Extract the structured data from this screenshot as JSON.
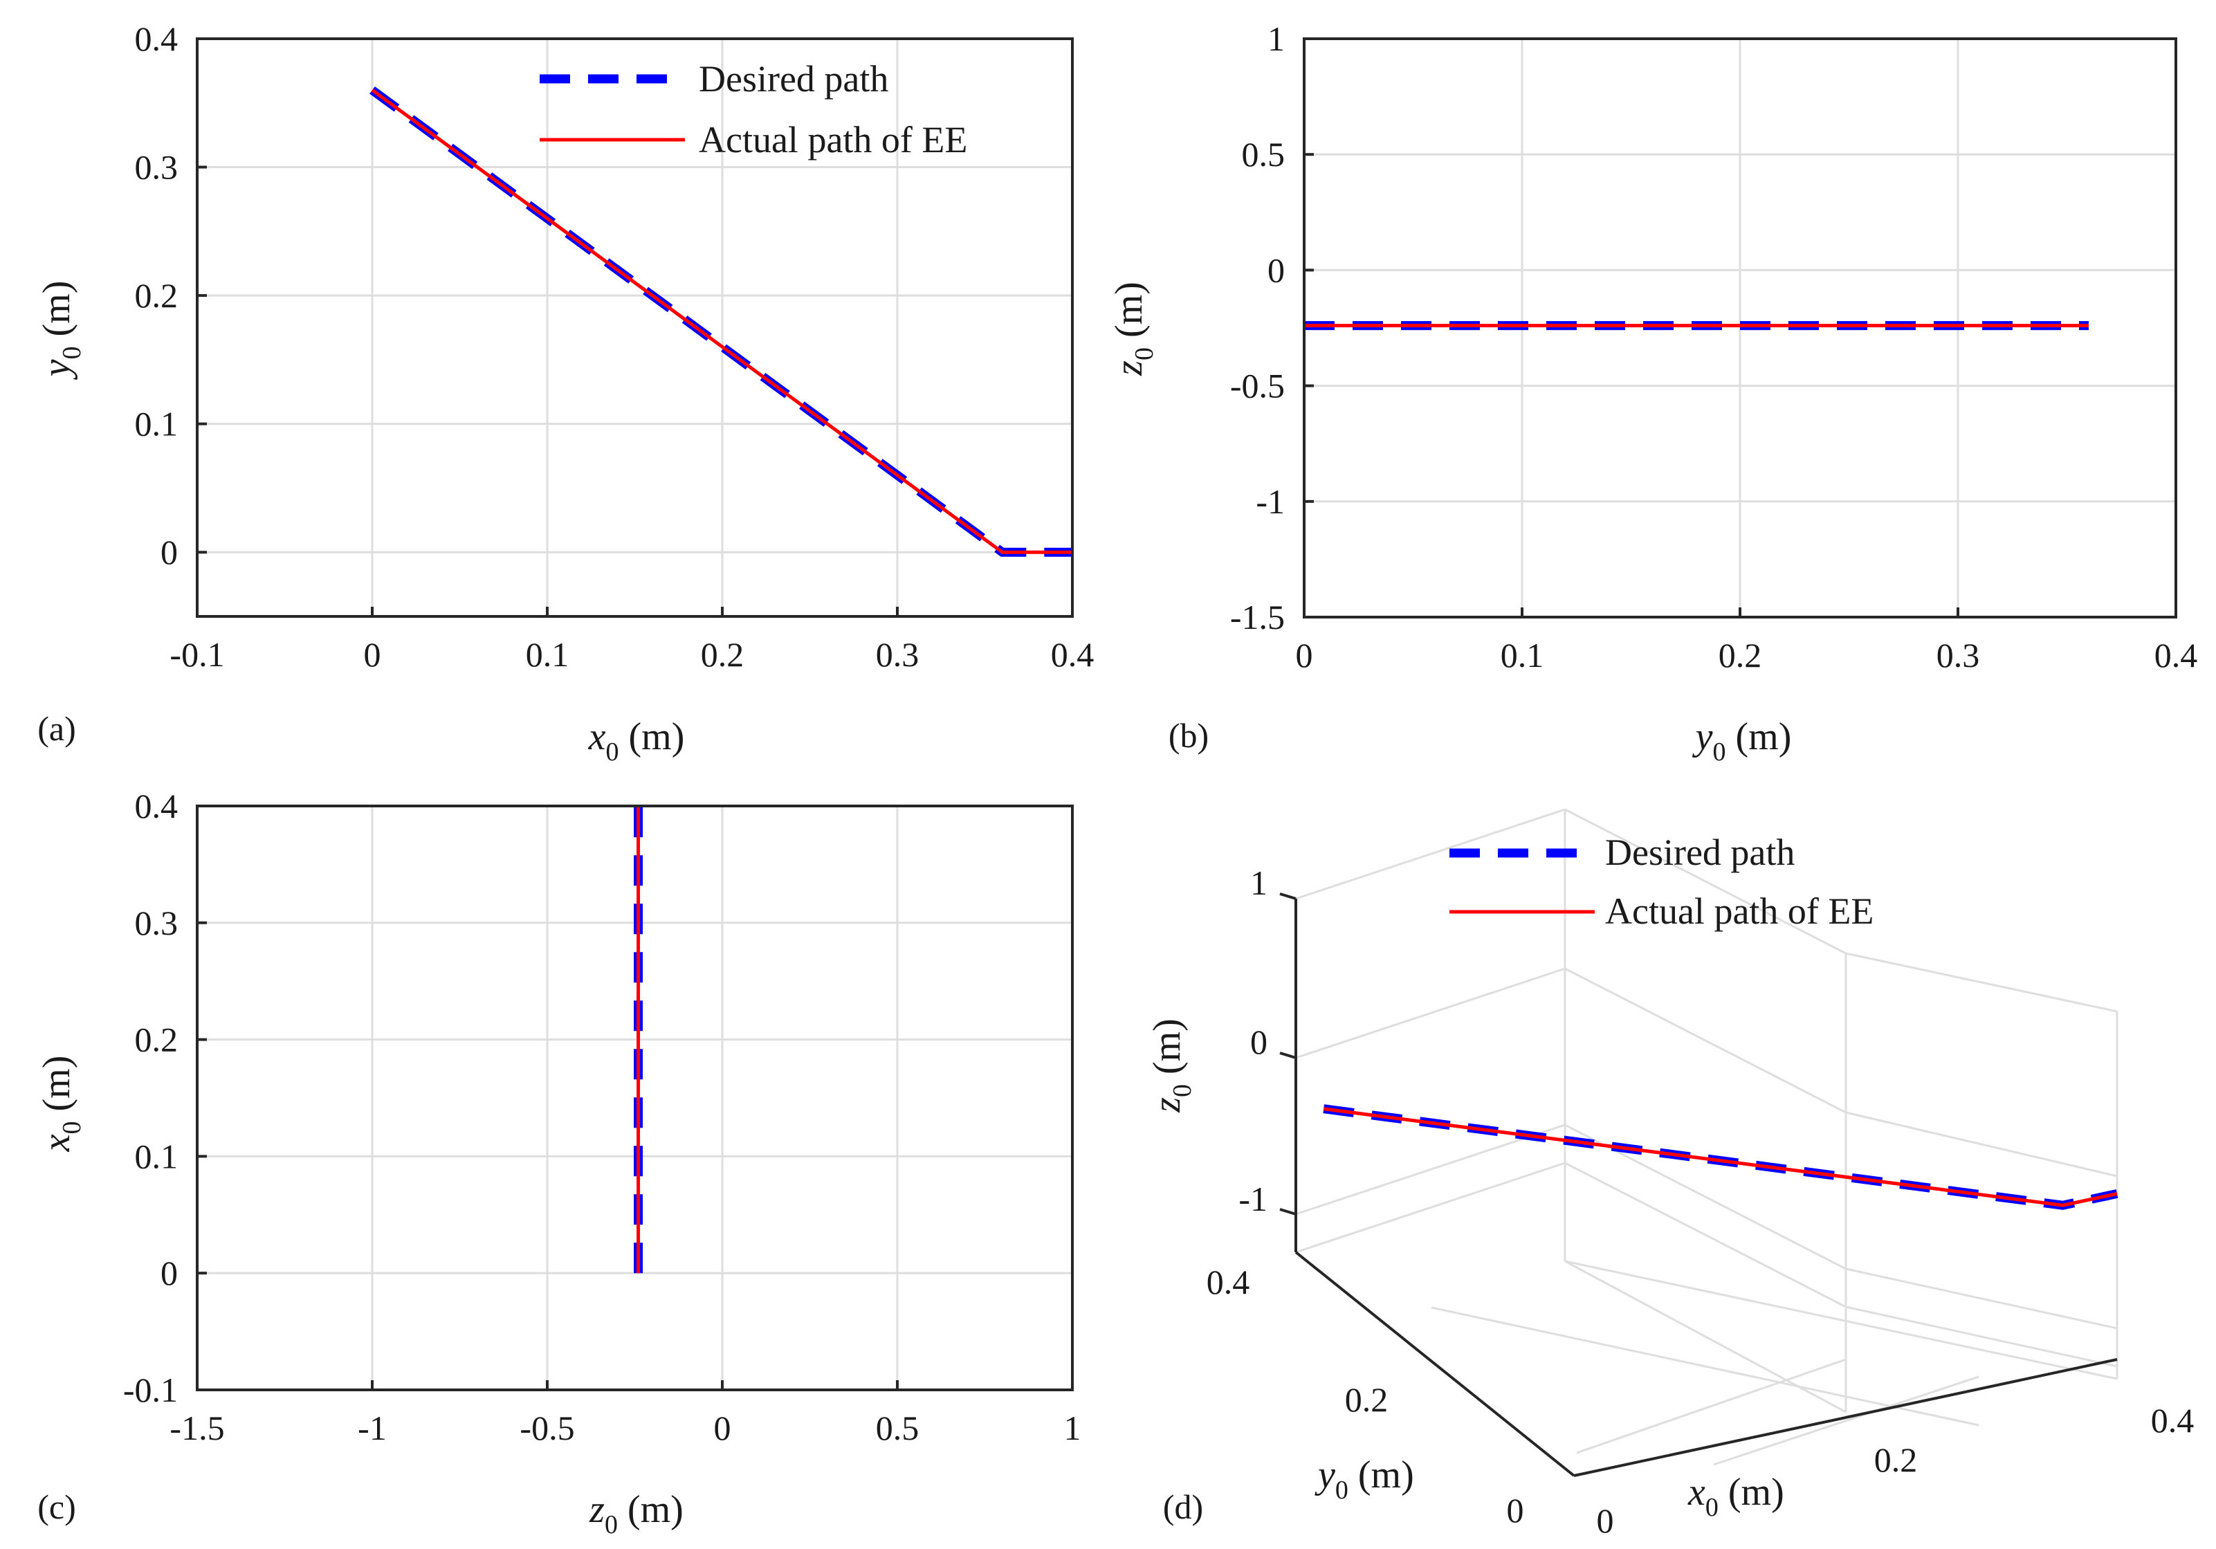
{
  "chart_data": [
    {
      "id": "a",
      "type": "line",
      "panel_label": "(a)",
      "xlabel": {
        "var": "x",
        "sub": "0",
        "unit": " (m)"
      },
      "ylabel": {
        "var": "y",
        "sub": "0",
        "unit": " (m)"
      },
      "xlim": [
        -0.1,
        0.4
      ],
      "ylim": [
        -0.05,
        0.4
      ],
      "xticks": [
        -0.1,
        0,
        0.1,
        0.2,
        0.3,
        0.4
      ],
      "xtick_labels": [
        "-0.1",
        "0",
        "0.1",
        "0.2",
        "0.3",
        "0.4"
      ],
      "yticks": [
        0,
        0.1,
        0.2,
        0.3,
        0.4
      ],
      "ytick_labels": [
        "0",
        "0.1",
        "0.2",
        "0.3",
        "0.4"
      ],
      "grid": true,
      "legend": [
        "Desired path",
        "Actual path of EE"
      ],
      "series": [
        {
          "name": "Desired path",
          "style": "dashed",
          "color": "#0000ff",
          "x": [
            0,
            0.36,
            0.4
          ],
          "y": [
            0.36,
            0,
            0
          ]
        },
        {
          "name": "Actual path of EE",
          "style": "solid",
          "color": "#ff0000",
          "x": [
            0,
            0.36,
            0.4
          ],
          "y": [
            0.36,
            0,
            0
          ]
        }
      ]
    },
    {
      "id": "b",
      "type": "line",
      "panel_label": "(b)",
      "xlabel": {
        "var": "y",
        "sub": "0",
        "unit": " (m)"
      },
      "ylabel": {
        "var": "z",
        "sub": "0",
        "unit": " (m)"
      },
      "xlim": [
        0,
        0.4
      ],
      "ylim": [
        -1.5,
        1
      ],
      "xticks": [
        0,
        0.1,
        0.2,
        0.3,
        0.4
      ],
      "xtick_labels": [
        "0",
        "0.1",
        "0.2",
        "0.3",
        "0.4"
      ],
      "yticks": [
        -1.5,
        -1,
        -0.5,
        0,
        0.5,
        1
      ],
      "ytick_labels": [
        "-1.5",
        "-1",
        "-0.5",
        "0",
        "0.5",
        "1"
      ],
      "grid": true,
      "series": [
        {
          "name": "Desired path",
          "style": "dashed",
          "color": "#0000ff",
          "x": [
            0,
            0.36
          ],
          "y": [
            -0.24,
            -0.24
          ]
        },
        {
          "name": "Actual path of EE",
          "style": "solid",
          "color": "#ff0000",
          "x": [
            0,
            0.36
          ],
          "y": [
            -0.24,
            -0.24
          ]
        }
      ]
    },
    {
      "id": "c",
      "type": "line",
      "panel_label": "(c)",
      "xlabel": {
        "var": "z",
        "sub": "0",
        "unit": " (m)"
      },
      "ylabel": {
        "var": "x",
        "sub": "0",
        "unit": " (m)"
      },
      "xlim": [
        -1.5,
        1
      ],
      "ylim": [
        -0.1,
        0.4
      ],
      "xticks": [
        -1.5,
        -1,
        -0.5,
        0,
        0.5,
        1
      ],
      "xtick_labels": [
        "-1.5",
        "-1",
        "-0.5",
        "0",
        "0.5",
        "1"
      ],
      "yticks": [
        -0.1,
        0,
        0.1,
        0.2,
        0.3,
        0.4
      ],
      "ytick_labels": [
        "-0.1",
        "0",
        "0.1",
        "0.2",
        "0.3",
        "0.4"
      ],
      "grid": true,
      "series": [
        {
          "name": "Desired path",
          "style": "dashed",
          "color": "#0000ff",
          "x": [
            -0.24,
            -0.24
          ],
          "y": [
            0,
            0.4
          ]
        },
        {
          "name": "Actual path of EE",
          "style": "solid",
          "color": "#ff0000",
          "x": [
            -0.24,
            -0.24
          ],
          "y": [
            0,
            0.4
          ]
        }
      ]
    },
    {
      "id": "d",
      "type": "line3d",
      "panel_label": "(d)",
      "xlabel": {
        "var": "x",
        "sub": "0",
        "unit": " (m)"
      },
      "ylabel": {
        "var": "y",
        "sub": "0",
        "unit": " (m)"
      },
      "zlabel": {
        "var": "z",
        "sub": "0",
        "unit": " (m)"
      },
      "xlim": [
        0,
        0.4
      ],
      "ylim": [
        0,
        0.4
      ],
      "zlim": [
        -1.3,
        1
      ],
      "xtick_labels": [
        "0",
        "0.2",
        "0.4"
      ],
      "ytick_labels": [
        "0",
        "0.2",
        "0.4"
      ],
      "ztick_labels": [
        "-1",
        "0",
        "1"
      ],
      "grid": true,
      "legend": [
        "Desired path",
        "Actual path of EE"
      ],
      "series": [
        {
          "name": "Desired path",
          "style": "dashed",
          "color": "#0000ff",
          "x": [
            0,
            0.36,
            0.4
          ],
          "y": [
            0.36,
            0,
            0
          ],
          "z": [
            -0.24,
            -0.24,
            -0.24
          ]
        },
        {
          "name": "Actual path of EE",
          "style": "solid",
          "color": "#ff0000",
          "x": [
            0,
            0.36,
            0.4
          ],
          "y": [
            0.36,
            0,
            0
          ],
          "z": [
            -0.24,
            -0.24,
            -0.24
          ]
        }
      ]
    }
  ]
}
